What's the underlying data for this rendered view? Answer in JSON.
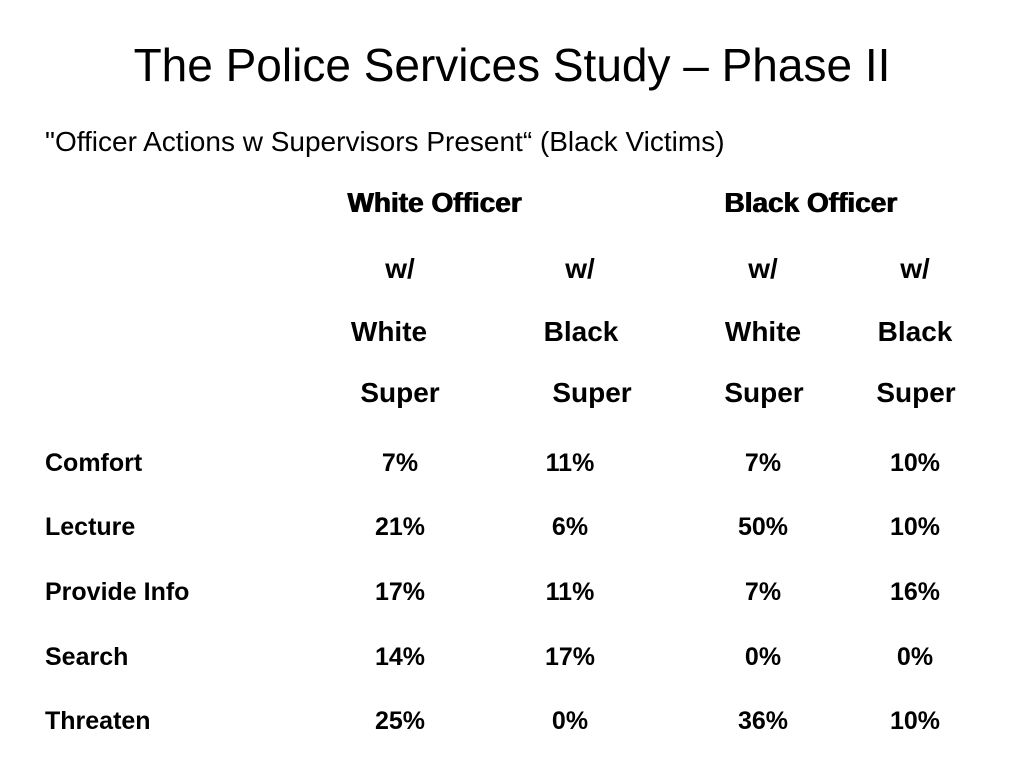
{
  "slide": {
    "title": "The Police Services Study – Phase II",
    "subtitle": "\"Officer Actions w Supervisors Present“ (Black Victims)"
  },
  "table": {
    "groups": [
      "White Officer",
      "Black Officer"
    ],
    "columns": [
      {
        "line1": "w/",
        "line2": "White",
        "line3": "Super"
      },
      {
        "line1": "w/",
        "line2": "Black",
        "line3": "Super"
      },
      {
        "line1": "w/",
        "line2": "White",
        "line3": "Super"
      },
      {
        "line1": "w/",
        "line2": "Black",
        "line3": "Super"
      }
    ],
    "rows": [
      {
        "label": "Comfort",
        "values": [
          "7%",
          "11%",
          "7%",
          "10%"
        ]
      },
      {
        "label": "Lecture",
        "values": [
          "21%",
          "6%",
          "50%",
          "10%"
        ]
      },
      {
        "label": "Provide Info",
        "values": [
          "17%",
          "11%",
          "7%",
          "16%"
        ]
      },
      {
        "label": "Search",
        "values": [
          "14%",
          "17%",
          "0%",
          "0%"
        ]
      },
      {
        "label": "Threaten",
        "values": [
          "25%",
          "0%",
          "36%",
          "10%"
        ]
      }
    ]
  }
}
